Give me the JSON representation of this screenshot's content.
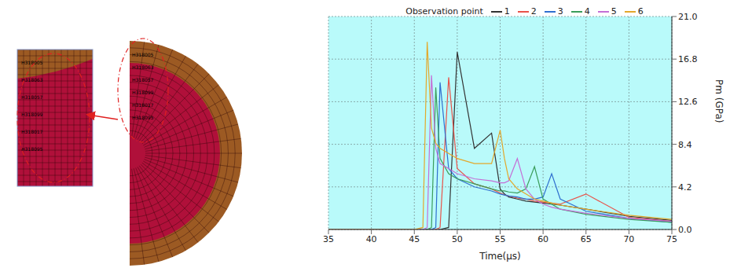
{
  "chart_data": {
    "type": "line",
    "x_label": "Time(μs)",
    "y_label": "Pm (GPa)",
    "legend_title": "Observation point",
    "legend": "top",
    "grid": true,
    "x": [
      35,
      40,
      44,
      45,
      46,
      46.5,
      47,
      47.5,
      48,
      49,
      50,
      52,
      54,
      55,
      55.5,
      56,
      57,
      58,
      59,
      60,
      61,
      62,
      65,
      70,
      75
    ],
    "xlim": [
      35,
      75
    ],
    "xticks": [
      35,
      40,
      45,
      50,
      55,
      60,
      65,
      70,
      75
    ],
    "ylim": [
      0,
      21
    ],
    "yticks": [
      {
        "value": 0,
        "label": "0.0"
      },
      4.2,
      8.4,
      12.6,
      16.8,
      {
        "value": 21,
        "label": "21.0"
      }
    ],
    "series": [
      {
        "name": "1",
        "color": "#333333",
        "values": [
          0,
          0,
          0,
          0,
          0,
          0,
          0,
          0,
          0,
          0.2,
          17.5,
          8,
          9.5,
          4,
          3.5,
          3.2,
          3,
          2.8,
          2.7,
          2.6,
          2.5,
          2.4,
          2,
          1.3,
          0.9
        ]
      },
      {
        "name": "2",
        "color": "#e8534a",
        "values": [
          0,
          0,
          0,
          0,
          0,
          0,
          0,
          0,
          0.2,
          15,
          6,
          4.5,
          4,
          3.6,
          3.4,
          3.3,
          3.1,
          3,
          2.8,
          2.7,
          2.6,
          2.5,
          3.5,
          1.2,
          0.8
        ]
      },
      {
        "name": "3",
        "color": "#2f6fcf",
        "values": [
          0,
          0,
          0,
          0,
          0,
          0,
          0,
          0.2,
          14.5,
          6,
          5,
          4.2,
          3.8,
          3.5,
          3.4,
          3.3,
          3.2,
          3,
          3,
          3.2,
          5.5,
          3,
          1.8,
          1.1,
          0.7
        ]
      },
      {
        "name": "4",
        "color": "#3a9d5a",
        "values": [
          0,
          0,
          0,
          0,
          0,
          0,
          0.2,
          14,
          7,
          5.5,
          5,
          4.5,
          4,
          3.8,
          3.8,
          3.7,
          3.6,
          4,
          6.2,
          3,
          2.5,
          2,
          1.5,
          1,
          0.7
        ]
      },
      {
        "name": "5",
        "color": "#c46fd6",
        "values": [
          0,
          0,
          0,
          0,
          0,
          0.2,
          15.2,
          8,
          6.5,
          6,
          5.5,
          5,
          4.8,
          4.6,
          4.6,
          4.8,
          7,
          4,
          3,
          2.5,
          2.2,
          2,
          1.6,
          1.1,
          0.8
        ]
      },
      {
        "name": "6",
        "color": "#e3a82c",
        "values": [
          0,
          0,
          0,
          0,
          0.2,
          18.5,
          10,
          8.5,
          8,
          7.5,
          7,
          6.5,
          6.5,
          9.8,
          7,
          5,
          4,
          3.5,
          3,
          2.8,
          2.6,
          2.4,
          2,
          1.4,
          1
        ]
      }
    ]
  },
  "diagram": {
    "inset_labels": [
      "H318005",
      "H318063",
      "H318057",
      "H318099",
      "H318017",
      "H318095"
    ],
    "model_labels": [
      "H318005",
      "H318063",
      "H318057",
      "H318099",
      "H318017",
      "H318095"
    ]
  }
}
